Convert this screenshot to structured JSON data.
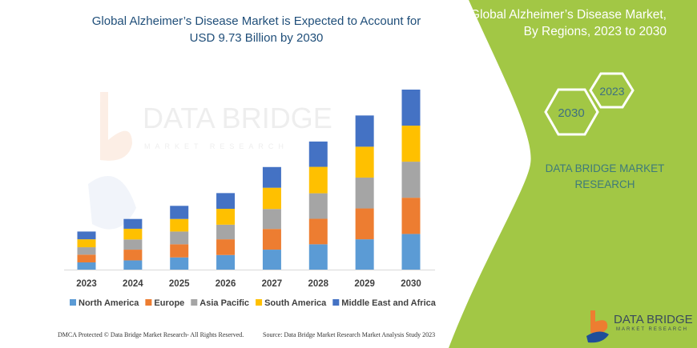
{
  "header": {
    "title_line1": "Global Alzheimer’s Disease Market is Expected to Account for",
    "title_line2": "USD 9.73 Billion by 2030"
  },
  "side_panel": {
    "title_line1": "Global Alzheimer’s Disease Market,",
    "title_line2": "By Regions, 2023 to 2030",
    "hex_start": "2023",
    "hex_end": "2030",
    "brand_line1": "DATA BRIDGE MARKET",
    "brand_line2": "RESEARCH",
    "logo_text": "DATA BRIDGE",
    "logo_sub": "MARKET RESEARCH",
    "watermark_text": "DATA BRIDGE",
    "watermark_sub": "MARKET RESEARCH",
    "panel_color": "#a2c745"
  },
  "footer": {
    "left": "DMCA Protected © Data Bridge Market Research-  All Rights Reserved.",
    "right": "Source:  Data Bridge Market Research  Market Analysis Study 2023"
  },
  "chart_data": {
    "type": "bar",
    "stacked": true,
    "title": "Global Alzheimer’s Disease Market is Expected to Account for USD 9.73 Billion by 2030",
    "xlabel": "",
    "ylabel": "",
    "y_axis_shown": false,
    "grid": false,
    "legend_placement": "bottom",
    "categories": [
      "2023",
      "2024",
      "2025",
      "2026",
      "2027",
      "2028",
      "2029",
      "2030"
    ],
    "ylim": [
      0,
      10
    ],
    "series": [
      {
        "name": "North America",
        "color": "#5b9bd5",
        "values": [
          0.39,
          0.5,
          0.66,
          0.79,
          1.08,
          1.37,
          1.64,
          1.93
        ]
      },
      {
        "name": "Europe",
        "color": "#ed7d31",
        "values": [
          0.42,
          0.58,
          0.71,
          0.85,
          1.12,
          1.38,
          1.67,
          1.96
        ]
      },
      {
        "name": "Asia Pacific",
        "color": "#a5a5a5",
        "values": [
          0.4,
          0.55,
          0.69,
          0.79,
          1.08,
          1.38,
          1.67,
          1.95
        ]
      },
      {
        "name": "South America",
        "color": "#ffc000",
        "values": [
          0.43,
          0.58,
          0.68,
          0.86,
          1.15,
          1.43,
          1.67,
          1.95
        ]
      },
      {
        "name": "Middle East and Africa",
        "color": "#4472c4",
        "values": [
          0.42,
          0.53,
          0.71,
          0.85,
          1.12,
          1.37,
          1.69,
          1.95
        ]
      }
    ]
  }
}
